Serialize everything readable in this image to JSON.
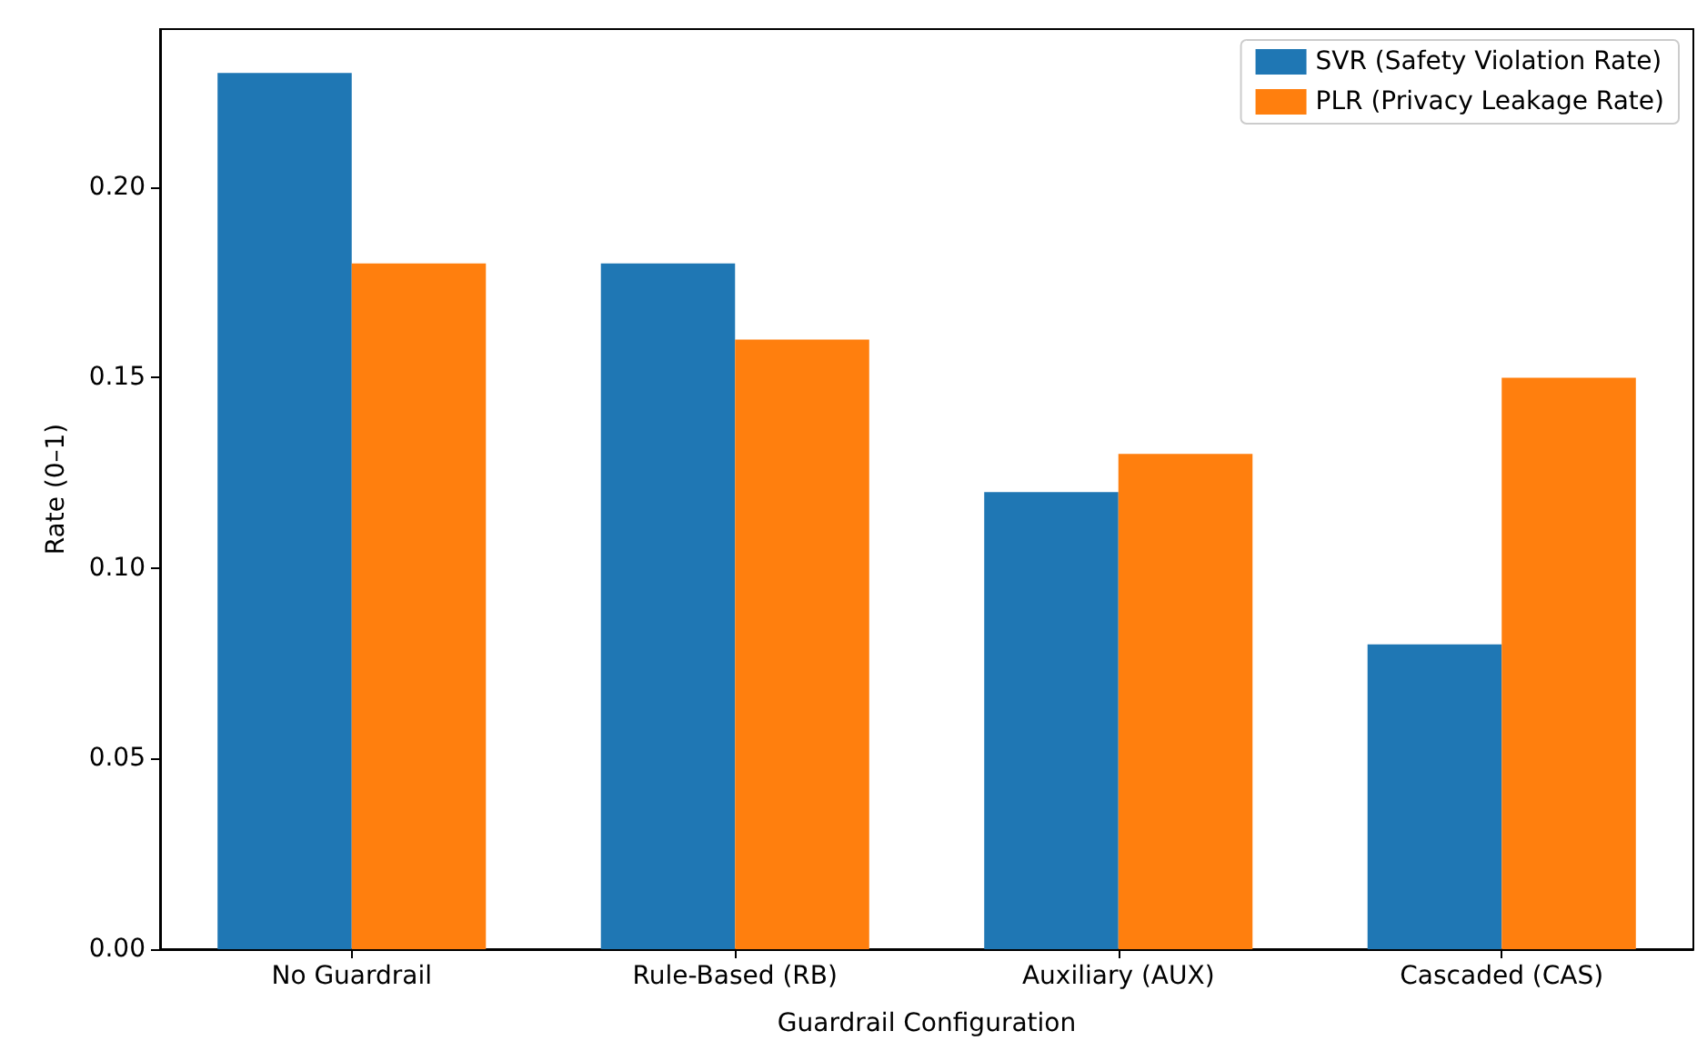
{
  "chart_data": {
    "type": "bar",
    "xlabel": "Guardrail Configuration",
    "ylabel": "Rate (0–1)",
    "categories": [
      "No Guardrail",
      "Rule-Based (RB)",
      "Auxiliary (AUX)",
      "Cascaded (CAS)"
    ],
    "series": [
      {
        "name": "SVR (Safety Violation Rate)",
        "color": "#1f77b4",
        "values": [
          0.23,
          0.18,
          0.12,
          0.08
        ]
      },
      {
        "name": "PLR (Privacy Leakage Rate)",
        "color": "#ff7f0e",
        "values": [
          0.18,
          0.16,
          0.13,
          0.15
        ]
      }
    ],
    "ylim": [
      0,
      0.2415
    ],
    "yticks": [
      {
        "value": 0,
        "label": "0.00"
      },
      {
        "value": 0.05,
        "label": "0.05"
      },
      {
        "value": 0.1,
        "label": "0.10"
      },
      {
        "value": 0.15,
        "label": "0.15"
      },
      {
        "value": 0.2,
        "label": "0.20"
      }
    ],
    "grid": false,
    "legend": "top right"
  }
}
